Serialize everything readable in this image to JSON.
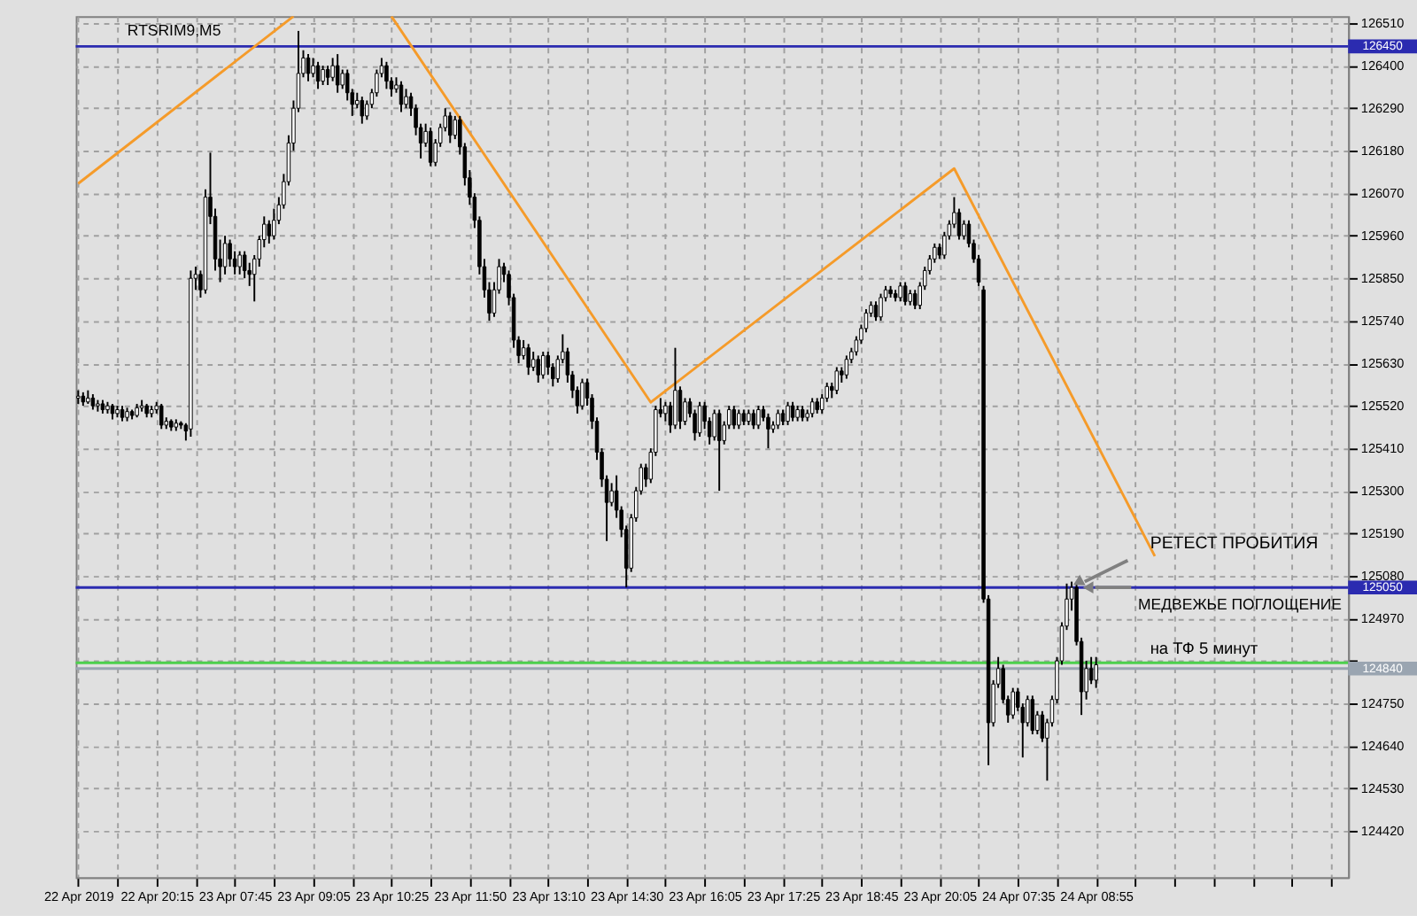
{
  "chart_data": {
    "type": "candlestick",
    "title": "RTSRIM9,M5",
    "categories": [
      "22 Apr 2019",
      null,
      null,
      null,
      null,
      null,
      null,
      null,
      null,
      null,
      null,
      null,
      null,
      null,
      null,
      null,
      "22 Apr 20:15",
      null,
      null,
      null,
      null,
      null,
      null,
      null,
      null,
      null,
      null,
      null,
      null,
      null,
      null,
      null,
      "23 Apr 07:45",
      null,
      null,
      null,
      null,
      null,
      null,
      null,
      null,
      null,
      null,
      null,
      null,
      null,
      null,
      null,
      "23 Apr 09:05",
      null,
      null,
      null,
      null,
      null,
      null,
      null,
      null,
      null,
      null,
      null,
      null,
      null,
      null,
      null,
      "23 Apr 10:25",
      null,
      null,
      null,
      null,
      null,
      null,
      null,
      null,
      null,
      null,
      null,
      null,
      null,
      null,
      null,
      "23 Apr 11:50",
      null,
      null,
      null,
      null,
      null,
      null,
      null,
      null,
      null,
      null,
      null,
      null,
      null,
      null,
      null,
      "23 Apr 13:10",
      null,
      null,
      null,
      null,
      null,
      null,
      null,
      null,
      null,
      null,
      null,
      null,
      null,
      null,
      null,
      "23 Apr 14:30",
      null,
      null,
      null,
      null,
      null,
      null,
      null,
      null,
      null,
      null,
      null,
      null,
      null,
      null,
      null,
      "23 Apr 16:05",
      null,
      null,
      null,
      null,
      null,
      null,
      null,
      null,
      null,
      null,
      null,
      null,
      null,
      null,
      null,
      "23 Apr 17:25",
      null,
      null,
      null,
      null,
      null,
      null,
      null,
      null,
      null,
      null,
      null,
      null,
      null,
      null,
      null,
      "23 Apr 18:45",
      null,
      null,
      null,
      null,
      null,
      null,
      null,
      null,
      null,
      null,
      null,
      null,
      null,
      null,
      null,
      "23 Apr 20:05",
      null,
      null,
      null,
      null,
      null,
      null,
      null,
      null,
      null,
      null,
      null,
      null,
      null,
      null,
      null,
      "24 Apr 07:35",
      null,
      null,
      null,
      null,
      null,
      null,
      null,
      null,
      null,
      null,
      null,
      null,
      null,
      null,
      null,
      "24 Apr 08:55",
      null,
      null,
      null,
      null,
      null,
      null,
      null,
      null,
      null,
      null,
      null,
      null,
      null,
      null,
      null,
      null,
      null,
      null,
      null,
      null,
      null,
      null,
      null,
      null,
      null,
      null,
      null,
      null,
      null,
      null,
      null,
      null,
      null,
      null,
      null,
      null,
      null,
      null,
      null,
      null,
      null,
      null,
      null,
      null,
      null,
      null,
      null,
      null,
      null,
      null,
      null
    ],
    "ohlc": [
      [
        125540,
        125560,
        125525,
        125545
      ],
      [
        125545,
        125555,
        125520,
        125530
      ],
      [
        125530,
        125560,
        125525,
        125540
      ],
      [
        125540,
        125550,
        125510,
        125520
      ],
      [
        125520,
        125535,
        125505,
        125525
      ],
      [
        125525,
        125535,
        125500,
        125510
      ],
      [
        125510,
        125530,
        125500,
        125520
      ],
      [
        125520,
        125525,
        125485,
        125500
      ],
      [
        125500,
        125520,
        125490,
        125510
      ],
      [
        125510,
        125520,
        125480,
        125490
      ],
      [
        125490,
        125515,
        125480,
        125505
      ],
      [
        125505,
        125510,
        125485,
        125495
      ],
      [
        125495,
        125525,
        125490,
        125515
      ],
      [
        125515,
        125535,
        125505,
        125520
      ],
      [
        125520,
        125525,
        125490,
        125500
      ],
      [
        125500,
        125520,
        125490,
        125510
      ],
      [
        125510,
        125530,
        125500,
        125520
      ],
      [
        125520,
        125525,
        125460,
        125470
      ],
      [
        125470,
        125490,
        125460,
        125480
      ],
      [
        125480,
        125485,
        125455,
        125465
      ],
      [
        125465,
        125485,
        125455,
        125475
      ],
      [
        125475,
        125480,
        125460,
        125470
      ],
      [
        125470,
        125475,
        125430,
        125455
      ],
      [
        125460,
        125870,
        125440,
        125850
      ],
      [
        125850,
        125880,
        125820,
        125860
      ],
      [
        125860,
        125870,
        125800,
        125820
      ],
      [
        125820,
        126080,
        125810,
        126060
      ],
      [
        126060,
        126175,
        125990,
        126010
      ],
      [
        126010,
        126030,
        125870,
        125900
      ],
      [
        125900,
        125950,
        125840,
        125880
      ],
      [
        125880,
        125960,
        125860,
        125940
      ],
      [
        125940,
        125950,
        125880,
        125900
      ],
      [
        125900,
        125920,
        125860,
        125880
      ],
      [
        125880,
        125920,
        125860,
        125910
      ],
      [
        125910,
        125920,
        125850,
        125870
      ],
      [
        125870,
        125890,
        125830,
        125860
      ],
      [
        125860,
        125910,
        125790,
        125900
      ],
      [
        125900,
        125960,
        125880,
        125950
      ],
      [
        125950,
        126010,
        125930,
        125990
      ],
      [
        125990,
        126000,
        125940,
        125960
      ],
      [
        125960,
        126030,
        125950,
        126000
      ],
      [
        126000,
        126060,
        125990,
        126040
      ],
      [
        126040,
        126120,
        126030,
        126100
      ],
      [
        126100,
        126220,
        126090,
        126200
      ],
      [
        126200,
        126310,
        126180,
        126290
      ],
      [
        126290,
        126490,
        126280,
        126380
      ],
      [
        126380,
        126440,
        126370,
        126420
      ],
      [
        126420,
        126430,
        126360,
        126380
      ],
      [
        126380,
        126420,
        126370,
        126400
      ],
      [
        126400,
        126410,
        126340,
        126360
      ],
      [
        126360,
        126400,
        126350,
        126390
      ],
      [
        126390,
        126400,
        126350,
        126370
      ],
      [
        126370,
        126420,
        126360,
        126400
      ],
      [
        126400,
        126430,
        126330,
        126350
      ],
      [
        126350,
        126390,
        126340,
        126380
      ],
      [
        126380,
        126390,
        126310,
        126330
      ],
      [
        126330,
        126340,
        126270,
        126300
      ],
      [
        126300,
        126330,
        126290,
        126310
      ],
      [
        126310,
        126320,
        126250,
        126270
      ],
      [
        126270,
        126310,
        126260,
        126300
      ],
      [
        126300,
        126340,
        126290,
        126330
      ],
      [
        126330,
        126390,
        126320,
        126380
      ],
      [
        126380,
        126420,
        126370,
        126400
      ],
      [
        126400,
        126410,
        126340,
        126360
      ],
      [
        126360,
        126370,
        126320,
        126340
      ],
      [
        126340,
        126370,
        126330,
        126350
      ],
      [
        126350,
        126360,
        126280,
        126300
      ],
      [
        126300,
        126340,
        126290,
        126320
      ],
      [
        126320,
        126330,
        126270,
        126290
      ],
      [
        126290,
        126300,
        126220,
        126240
      ],
      [
        126240,
        126250,
        126160,
        126200
      ],
      [
        126200,
        126250,
        126190,
        126230
      ],
      [
        126230,
        126240,
        126140,
        126150
      ],
      [
        126150,
        126210,
        126140,
        126200
      ],
      [
        126200,
        126250,
        126190,
        126240
      ],
      [
        126240,
        126290,
        126230,
        126270
      ],
      [
        126270,
        126280,
        126200,
        126220
      ],
      [
        126220,
        126270,
        126210,
        126260
      ],
      [
        126260,
        126270,
        126170,
        126190
      ],
      [
        126190,
        126200,
        126090,
        126110
      ],
      [
        126110,
        126130,
        126040,
        126060
      ],
      [
        126060,
        126070,
        125980,
        126000
      ],
      [
        126000,
        126010,
        125860,
        125880
      ],
      [
        125880,
        125900,
        125800,
        125820
      ],
      [
        125820,
        125840,
        125740,
        125760
      ],
      [
        125760,
        125840,
        125750,
        125820
      ],
      [
        125820,
        125900,
        125810,
        125880
      ],
      [
        125880,
        125890,
        125840,
        125860
      ],
      [
        125860,
        125870,
        125780,
        125800
      ],
      [
        125800,
        125810,
        125670,
        125690
      ],
      [
        125690,
        125700,
        125630,
        125650
      ],
      [
        125650,
        125690,
        125640,
        125670
      ],
      [
        125670,
        125680,
        125600,
        125620
      ],
      [
        125620,
        125660,
        125610,
        125640
      ],
      [
        125640,
        125650,
        125580,
        125600
      ],
      [
        125600,
        125660,
        125590,
        125650
      ],
      [
        125650,
        125660,
        125600,
        125620
      ],
      [
        125620,
        125630,
        125570,
        125590
      ],
      [
        125590,
        125650,
        125580,
        125640
      ],
      [
        125640,
        125705,
        125630,
        125660
      ],
      [
        125660,
        125670,
        125580,
        125600
      ],
      [
        125600,
        125610,
        125540,
        125560
      ],
      [
        125560,
        125570,
        125500,
        125520
      ],
      [
        125520,
        125590,
        125510,
        125580
      ],
      [
        125580,
        125590,
        125520,
        125540
      ],
      [
        125540,
        125550,
        125460,
        125480
      ],
      [
        125480,
        125490,
        125380,
        125400
      ],
      [
        125400,
        125410,
        125310,
        125330
      ],
      [
        125330,
        125340,
        125170,
        125270
      ],
      [
        125270,
        125320,
        125260,
        125300
      ],
      [
        125300,
        125340,
        125230,
        125250
      ],
      [
        125250,
        125260,
        125180,
        125200
      ],
      [
        125200,
        125210,
        125050,
        125100
      ],
      [
        125100,
        125240,
        125090,
        125230
      ],
      [
        125230,
        125310,
        125220,
        125300
      ],
      [
        125300,
        125370,
        125290,
        125360
      ],
      [
        125360,
        125370,
        125310,
        125330
      ],
      [
        125330,
        125410,
        125320,
        125400
      ],
      [
        125400,
        125520,
        125390,
        125510
      ],
      [
        125510,
        125540,
        125490,
        125500
      ],
      [
        125500,
        125530,
        125480,
        125520
      ],
      [
        125520,
        125530,
        125450,
        125470
      ],
      [
        125470,
        125670,
        125460,
        125560
      ],
      [
        125560,
        125570,
        125460,
        125480
      ],
      [
        125480,
        125540,
        125470,
        125530
      ],
      [
        125530,
        125540,
        125490,
        125500
      ],
      [
        125500,
        125510,
        125430,
        125450
      ],
      [
        125450,
        125530,
        125440,
        125520
      ],
      [
        125520,
        125530,
        125460,
        125480
      ],
      [
        125480,
        125490,
        125420,
        125440
      ],
      [
        125440,
        125510,
        125430,
        125500
      ],
      [
        125500,
        125510,
        125300,
        125430
      ],
      [
        125430,
        125480,
        125420,
        125470
      ],
      [
        125470,
        125520,
        125460,
        125510
      ],
      [
        125510,
        125520,
        125460,
        125470
      ],
      [
        125470,
        125510,
        125460,
        125500
      ],
      [
        125500,
        125510,
        125470,
        125480
      ],
      [
        125480,
        125510,
        125470,
        125500
      ],
      [
        125500,
        125510,
        125460,
        125470
      ],
      [
        125470,
        125520,
        125460,
        125510
      ],
      [
        125510,
        125520,
        125480,
        125490
      ],
      [
        125490,
        125500,
        125410,
        125460
      ],
      [
        125460,
        125480,
        125450,
        125470
      ],
      [
        125470,
        125510,
        125460,
        125500
      ],
      [
        125500,
        125510,
        125470,
        125480
      ],
      [
        125480,
        125530,
        125470,
        125520
      ],
      [
        125520,
        125530,
        125480,
        125490
      ],
      [
        125490,
        125520,
        125480,
        125510
      ],
      [
        125510,
        125520,
        125480,
        125490
      ],
      [
        125490,
        125510,
        125480,
        125500
      ],
      [
        125500,
        125540,
        125490,
        125530
      ],
      [
        125530,
        125540,
        125500,
        125510
      ],
      [
        125510,
        125550,
        125500,
        125540
      ],
      [
        125540,
        125580,
        125530,
        125570
      ],
      [
        125570,
        125580,
        125540,
        125560
      ],
      [
        125560,
        125620,
        125550,
        125610
      ],
      [
        125610,
        125620,
        125580,
        125600
      ],
      [
        125600,
        125650,
        125590,
        125640
      ],
      [
        125640,
        125670,
        125630,
        125660
      ],
      [
        125660,
        125700,
        125650,
        125690
      ],
      [
        125690,
        125730,
        125680,
        125720
      ],
      [
        125720,
        125770,
        125710,
        125760
      ],
      [
        125760,
        125790,
        125750,
        125780
      ],
      [
        125780,
        125790,
        125740,
        125750
      ],
      [
        125750,
        125810,
        125740,
        125800
      ],
      [
        125800,
        125830,
        125790,
        125820
      ],
      [
        125820,
        125830,
        125800,
        125810
      ],
      [
        125810,
        125820,
        125790,
        125800
      ],
      [
        125800,
        125840,
        125790,
        125830
      ],
      [
        125830,
        125840,
        125780,
        125790
      ],
      [
        125790,
        125820,
        125780,
        125810
      ],
      [
        125810,
        125820,
        125770,
        125780
      ],
      [
        125780,
        125840,
        125770,
        125830
      ],
      [
        125830,
        125880,
        125820,
        125870
      ],
      [
        125870,
        125910,
        125860,
        125900
      ],
      [
        125900,
        125940,
        125890,
        125930
      ],
      [
        125930,
        125940,
        125900,
        125910
      ],
      [
        125910,
        125970,
        125900,
        125960
      ],
      [
        125960,
        126000,
        125950,
        125990
      ],
      [
        125990,
        126060,
        125980,
        126020
      ],
      [
        126020,
        126030,
        125950,
        125960
      ],
      [
        125960,
        126000,
        125950,
        125990
      ],
      [
        125990,
        126000,
        125930,
        125940
      ],
      [
        125940,
        125950,
        125890,
        125900
      ],
      [
        125900,
        125910,
        125830,
        125840
      ],
      [
        125820,
        125830,
        125010,
        125020
      ],
      [
        125020,
        125030,
        124590,
        124700
      ],
      [
        124700,
        124810,
        124690,
        124800
      ],
      [
        124800,
        124870,
        124790,
        124840
      ],
      [
        124840,
        124850,
        124750,
        124760
      ],
      [
        124760,
        124770,
        124700,
        124720
      ],
      [
        124720,
        124790,
        124710,
        124780
      ],
      [
        124780,
        124790,
        124730,
        124740
      ],
      [
        124740,
        124750,
        124610,
        124700
      ],
      [
        124700,
        124770,
        124690,
        124760
      ],
      [
        124760,
        124770,
        124670,
        124680
      ],
      [
        124680,
        124730,
        124670,
        124720
      ],
      [
        124720,
        124730,
        124650,
        124660
      ],
      [
        124660,
        124710,
        124550,
        124700
      ],
      [
        124700,
        124770,
        124690,
        124760
      ],
      [
        124760,
        124870,
        124750,
        124860
      ],
      [
        124860,
        124960,
        124850,
        124950
      ],
      [
        124950,
        125060,
        124940,
        125020
      ],
      [
        125020,
        125065,
        124990,
        125050
      ],
      [
        125050,
        125060,
        124900,
        124910
      ],
      [
        124910,
        124920,
        124720,
        124780
      ],
      [
        124780,
        124860,
        124760,
        124840
      ],
      [
        124840,
        124870,
        124800,
        124810
      ],
      [
        124810,
        124870,
        124790,
        124850
      ],
      null,
      null,
      null,
      null,
      null,
      null,
      null,
      null,
      null,
      null,
      null,
      null,
      null,
      null,
      null,
      null,
      null,
      null,
      null,
      null,
      null,
      null,
      null,
      null,
      null,
      null,
      null,
      null,
      null,
      null,
      null,
      null,
      null,
      null,
      null,
      null,
      null,
      null,
      null,
      null,
      null,
      null,
      null,
      null,
      null,
      null,
      null,
      null,
      null,
      null,
      null
    ],
    "series": [
      {
        "type": "line",
        "color": "#f59b2a",
        "values": [
          126095,
          null,
          null,
          null,
          null,
          null,
          null,
          null,
          null,
          null,
          null,
          null,
          null,
          null,
          null,
          null,
          null,
          null,
          null,
          null,
          null,
          null,
          null,
          null,
          null,
          null,
          null,
          null,
          null,
          null,
          null,
          null,
          null,
          null,
          null,
          null,
          null,
          null,
          null,
          null,
          null,
          null,
          null,
          null,
          126528,
          null,
          null,
          null,
          null,
          null,
          null,
          null,
          null,
          null,
          null,
          null,
          null,
          null,
          null,
          null,
          null,
          null,
          null,
          null,
          null,
          null,
          null,
          null,
          null,
          null,
          null,
          null,
          null,
          null,
          null,
          null,
          null,
          null,
          null,
          null,
          null,
          null,
          null,
          null,
          null,
          null,
          null,
          null,
          null,
          null,
          null,
          null,
          null,
          null,
          null,
          null,
          null,
          null,
          null,
          null,
          null,
          null,
          null,
          null,
          null,
          null,
          null,
          null,
          null,
          null,
          null,
          null,
          null,
          null,
          null,
          null,
          null,
          null,
          null,
          null,
          null,
          null,
          null,
          null,
          null,
          null,
          null,
          null,
          null,
          null,
          null,
          null,
          null,
          null,
          null,
          null,
          null,
          null,
          null,
          null,
          null,
          null,
          null,
          null,
          null,
          null,
          null,
          null,
          null,
          null,
          null,
          null,
          null,
          null,
          null,
          null,
          null,
          null,
          null,
          null,
          null,
          null,
          null,
          null,
          null,
          null,
          null,
          null,
          null,
          null,
          null,
          null,
          null,
          null,
          null,
          null,
          null,
          null,
          null,
          null,
          null,
          null,
          null,
          null,
          null,
          null,
          null,
          null,
          null,
          null,
          null,
          null,
          null,
          null,
          null,
          null,
          null,
          null,
          null,
          null,
          null,
          null,
          null,
          null,
          null,
          null,
          null,
          null,
          null,
          null,
          null,
          null,
          null,
          null,
          null,
          null,
          null,
          null,
          null,
          null,
          null,
          null,
          null,
          null,
          null,
          null,
          null,
          null,
          null,
          null,
          null,
          null,
          null,
          null,
          null,
          null,
          null,
          null,
          null,
          null,
          null,
          null,
          null,
          null,
          null,
          null,
          null,
          null,
          null,
          null,
          null,
          null,
          null,
          null,
          null,
          null,
          null,
          null,
          null,
          null
        ]
      },
      {
        "type": "line",
        "color": "#f59b2a",
        "values": [
          null,
          null,
          null,
          null,
          null,
          null,
          null,
          null,
          null,
          null,
          null,
          null,
          null,
          null,
          null,
          null,
          null,
          null,
          null,
          null,
          null,
          null,
          null,
          null,
          null,
          null,
          null,
          null,
          null,
          null,
          null,
          null,
          null,
          null,
          null,
          null,
          null,
          null,
          null,
          null,
          null,
          null,
          null,
          null,
          null,
          null,
          null,
          null,
          null,
          null,
          null,
          null,
          null,
          null,
          null,
          null,
          null,
          null,
          null,
          null,
          null,
          null,
          null,
          null,
          126528,
          null,
          null,
          null,
          null,
          null,
          null,
          null,
          null,
          null,
          null,
          null,
          null,
          null,
          null,
          null,
          null,
          null,
          null,
          null,
          null,
          null,
          null,
          null,
          null,
          null,
          null,
          null,
          null,
          null,
          null,
          null,
          null,
          null,
          null,
          null,
          null,
          null,
          null,
          null,
          null,
          null,
          null,
          null,
          null,
          null,
          null,
          null,
          null,
          null,
          null,
          null,
          null,
          125529,
          null,
          null,
          null,
          null,
          null,
          null,
          null,
          null,
          null,
          null,
          null,
          null,
          null,
          null,
          null,
          null,
          null,
          null,
          null,
          null,
          null,
          null,
          null,
          null,
          null,
          null,
          null,
          null,
          null,
          null,
          null,
          null,
          null,
          null,
          null,
          null,
          null,
          null,
          null,
          null,
          null,
          null,
          null,
          null,
          null,
          null,
          null,
          null,
          null,
          null,
          null,
          null,
          null,
          null,
          null,
          null,
          null,
          null,
          null,
          null,
          null,
          126134,
          null,
          null,
          null,
          null,
          null,
          null,
          null,
          null,
          null,
          null,
          null,
          null,
          null,
          null,
          null,
          null,
          null,
          null,
          null,
          null,
          null,
          null,
          null,
          null,
          null,
          null,
          null,
          null,
          null,
          null,
          null,
          null,
          null,
          null,
          null,
          null,
          null,
          null,
          null,
          null,
          125131,
          null,
          null,
          null,
          null,
          null,
          null,
          null,
          null,
          null,
          null,
          null,
          null,
          null,
          null,
          null,
          null,
          null,
          null,
          null,
          null,
          null,
          null,
          null,
          null,
          null,
          null,
          null,
          null,
          null,
          null,
          null,
          null,
          null,
          null,
          null,
          null,
          null,
          null,
          null
        ]
      }
    ],
    "ylim": [
      124300,
      126528
    ],
    "yticks": [
      124420,
      124530,
      124640,
      124750,
      {
        "value": 124860,
        "label": null
      },
      124970,
      125080,
      125190,
      125300,
      125410,
      125520,
      125630,
      125740,
      125850,
      125960,
      126070,
      126180,
      126290,
      126400,
      126510
    ],
    "ref_lines": [
      {
        "axis": "y",
        "value": 126450,
        "label": "126450",
        "color": "#2b2bb0"
      },
      {
        "axis": "y",
        "value": 125050,
        "label": "125050",
        "color": "#2b2bb0"
      },
      {
        "axis": "y",
        "value": 124855,
        "label": null,
        "color": "#4cd04c"
      },
      {
        "axis": "y",
        "value": 124840,
        "label": "124840",
        "color": "#9aa5b1"
      }
    ],
    "annotations": [
      {
        "text": "РЕТЕСТ ПРОБИТИЯ",
        "y": 125065
      },
      {
        "text": "МЕДВЕЖЬЕ ПОГЛОЩЕНИЕ",
        "y": 125050
      },
      "на ТФ 5 минут"
    ],
    "grid": true
  }
}
